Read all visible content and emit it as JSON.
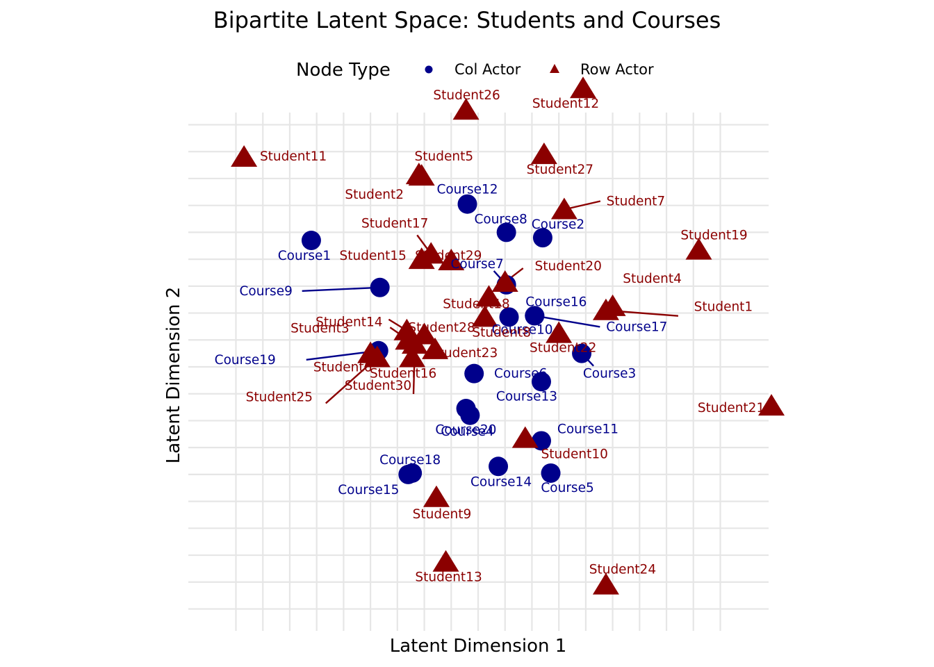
{
  "chart_data": {
    "type": "scatter",
    "title": "Bipartite Latent Space: Students and Courses",
    "xlabel": "Latent Dimension 1",
    "ylabel": "Latent Dimension 2",
    "grid": true,
    "legend": {
      "title": "Node Type",
      "placement": "top",
      "items": [
        {
          "label": "Col Actor",
          "shape": "circle",
          "color": "#00008B"
        },
        {
          "label": "Row Actor",
          "shape": "triangle",
          "color": "#8B0000"
        }
      ]
    },
    "xlim": [
      -2.15,
      2.15
    ],
    "ylim": [
      -2.15,
      2.15
    ],
    "series": [
      {
        "name": "Col Actor",
        "color": "#00008B",
        "shape": "circle",
        "points": [
          {
            "label": "Course1",
            "x": -1.24,
            "y": 0.94
          },
          {
            "label": "Course2",
            "x": 0.48,
            "y": 0.96
          },
          {
            "label": "Course3",
            "x": 0.77,
            "y": 0.1
          },
          {
            "label": "Course4",
            "x": -0.09,
            "y": -0.31
          },
          {
            "label": "Course5",
            "x": 0.54,
            "y": -0.79
          },
          {
            "label": "Course6",
            "x": -0.03,
            "y": -0.05
          },
          {
            "label": "Course7",
            "x": 0.21,
            "y": 0.61
          },
          {
            "label": "Course8",
            "x": 0.21,
            "y": 1.0
          },
          {
            "label": "Course9",
            "x": -0.73,
            "y": 0.59
          },
          {
            "label": "Course10",
            "x": 0.23,
            "y": 0.37
          },
          {
            "label": "Course11",
            "x": 0.47,
            "y": -0.55
          },
          {
            "label": "Course12",
            "x": -0.08,
            "y": 1.21
          },
          {
            "label": "Course13",
            "x": 0.47,
            "y": -0.11
          },
          {
            "label": "Course14",
            "x": 0.15,
            "y": -0.74
          },
          {
            "label": "Course15",
            "x": -0.52,
            "y": -0.8
          },
          {
            "label": "Course16",
            "x": 0.42,
            "y": 0.38
          },
          {
            "label": "Course17",
            "x": 0.42,
            "y": 0.38
          },
          {
            "label": "Course18",
            "x": -0.49,
            "y": -0.79
          },
          {
            "label": "Course19",
            "x": -0.74,
            "y": 0.12
          },
          {
            "label": "Course20",
            "x": -0.06,
            "y": -0.36
          }
        ]
      },
      {
        "name": "Row Actor",
        "color": "#8B0000",
        "shape": "triangle",
        "points": [
          {
            "label": "Student1",
            "x": 0.95,
            "y": 0.42
          },
          {
            "label": "Student2",
            "x": -0.42,
            "y": 1.42
          },
          {
            "label": "Student3",
            "x": -0.53,
            "y": 0.27
          },
          {
            "label": "Student4",
            "x": 1.0,
            "y": 0.45
          },
          {
            "label": "Student5",
            "x": -0.44,
            "y": 1.43
          },
          {
            "label": "Student6",
            "x": -0.8,
            "y": 0.1
          },
          {
            "label": "Student7",
            "x": 0.64,
            "y": 1.17
          },
          {
            "label": "Student8",
            "x": 0.05,
            "y": 0.37
          },
          {
            "label": "Student9",
            "x": -0.31,
            "y": -0.97
          },
          {
            "label": "Student10",
            "x": 0.35,
            "y": -0.53
          },
          {
            "label": "Student11",
            "x": -1.74,
            "y": 1.56
          },
          {
            "label": "Student12",
            "x": 0.78,
            "y": 2.07
          },
          {
            "label": "Student13",
            "x": -0.24,
            "y": -1.45
          },
          {
            "label": "Student14",
            "x": -0.52,
            "y": 0.2
          },
          {
            "label": "Student15",
            "x": -0.42,
            "y": 0.8
          },
          {
            "label": "Student16",
            "x": -0.49,
            "y": 0.07
          },
          {
            "label": "Student17",
            "x": -0.35,
            "y": 0.84
          },
          {
            "label": "Student18",
            "x": 0.08,
            "y": 0.52
          },
          {
            "label": "Student19",
            "x": 1.64,
            "y": 0.87
          },
          {
            "label": "Student20",
            "x": 0.2,
            "y": 0.63
          },
          {
            "label": "Student21",
            "x": 2.18,
            "y": -0.29
          },
          {
            "label": "Student22",
            "x": 0.6,
            "y": 0.25
          },
          {
            "label": "Student23",
            "x": -0.32,
            "y": 0.13
          },
          {
            "label": "Student24",
            "x": 0.95,
            "y": -1.62
          },
          {
            "label": "Student25",
            "x": -0.75,
            "y": 0.07
          },
          {
            "label": "Student26",
            "x": -0.09,
            "y": 1.91
          },
          {
            "label": "Student27",
            "x": 0.49,
            "y": 1.58
          },
          {
            "label": "Student28",
            "x": -0.4,
            "y": 0.24
          },
          {
            "label": "Student29",
            "x": -0.2,
            "y": 0.79
          },
          {
            "label": "Student30",
            "x": -0.47,
            "y": 0.17
          }
        ]
      }
    ]
  }
}
